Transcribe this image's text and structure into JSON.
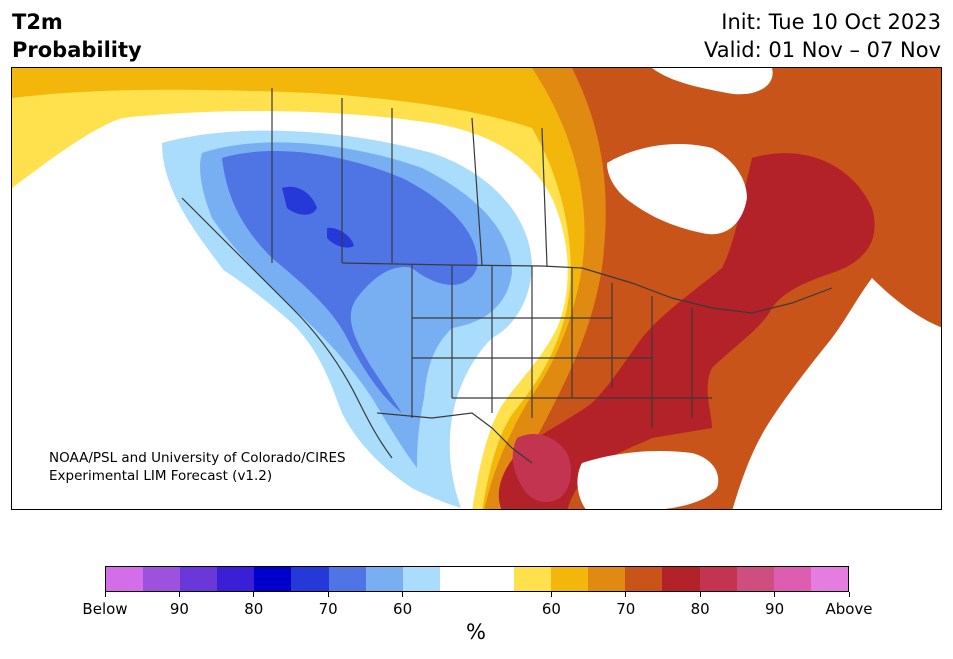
{
  "header": {
    "title_line1": "T2m",
    "title_line2": "Probability",
    "init": "Init: Tue 10 Oct 2023",
    "valid": "Valid: 01 Nov – 07 Nov"
  },
  "credit": {
    "line1": "NOAA/PSL and University of Colorado/CIRES",
    "line2": "Experimental LIM Forecast (v1.2)"
  },
  "colorbar": {
    "colors": [
      "#d36ee8",
      "#9c52dc",
      "#6a38d8",
      "#3b1fd6",
      "#0000cc",
      "#2538d8",
      "#4f74e4",
      "#78aff2",
      "#aadcfc",
      "#ffffff",
      "#ffffff",
      "#ffe14d",
      "#f2b70a",
      "#e08a12",
      "#c8541a",
      "#b32228",
      "#c23450",
      "#cf4e80",
      "#dd5db0",
      "#e57ce0"
    ],
    "tick_labels": [
      "Below",
      "90",
      "80",
      "70",
      "60",
      "60",
      "70",
      "80",
      "90",
      "Above"
    ],
    "unit": "%"
  },
  "map": {
    "below_colors": {
      "b60": "#aadcfc",
      "b70": "#78aff2",
      "b80": "#4f74e4",
      "b90": "#2538d8"
    },
    "above_colors": {
      "a60": "#ffe14d",
      "a70": "#f2b70a",
      "a80": "#e08a12",
      "a90": "#c8541a",
      "a95": "#b32228",
      "a99": "#c23450"
    },
    "water_color": "#ffffff",
    "border_color": "#3a3a3a"
  }
}
